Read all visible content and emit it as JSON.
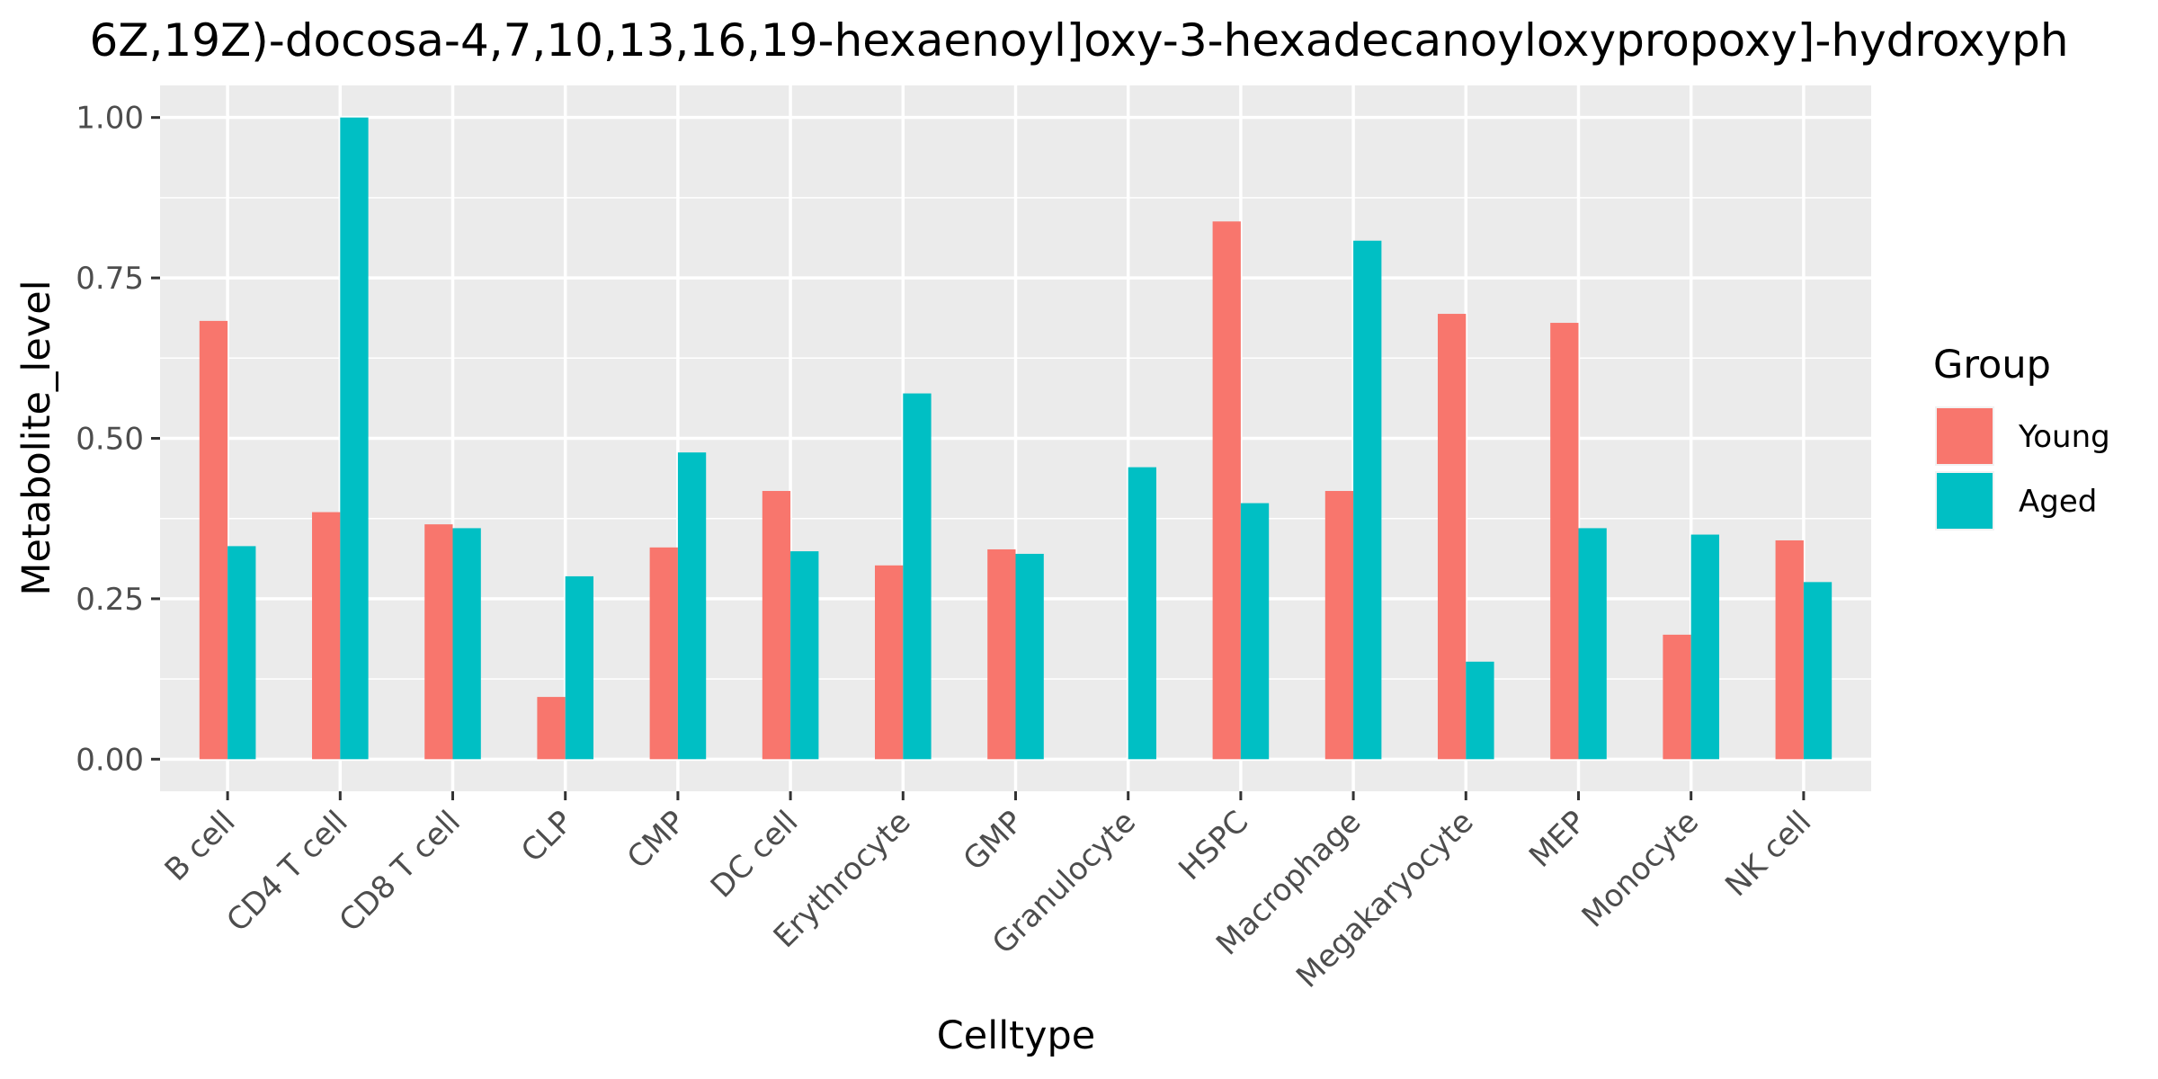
{
  "chart_data": {
    "type": "bar",
    "title": "6Z,19Z)-docosa-4,7,10,13,16,19-hexaenoyl]oxy-3-hexadecanoyloxypropoxy]-hydroxyph",
    "xlabel": "Celltype",
    "ylabel": "Metabolite_level",
    "ylim": [
      -0.05,
      1.05
    ],
    "yticks": [
      0,
      0.25,
      0.5,
      0.75,
      1.0
    ],
    "ytick_labels": [
      "0.00",
      "0.25",
      "0.50",
      "0.75",
      "1.00"
    ],
    "categories": [
      "B cell",
      "CD4 T cell",
      "CD8 T cell",
      "CLP",
      "CMP",
      "DC cell",
      "Erythrocyte",
      "GMP",
      "Granulocyte",
      "HSPC",
      "Macrophage",
      "Megakaryocyte",
      "MEP",
      "Monocyte",
      "NK cell"
    ],
    "series": [
      {
        "name": "Young",
        "color": "#F8766D",
        "values": [
          0.683,
          0.385,
          0.366,
          0.097,
          0.33,
          0.418,
          0.302,
          0.327,
          0.0,
          0.838,
          0.418,
          0.694,
          0.68,
          0.194,
          0.341
        ]
      },
      {
        "name": "Aged",
        "color": "#00BFC4",
        "values": [
          0.332,
          1.0,
          0.36,
          0.285,
          0.478,
          0.324,
          0.57,
          0.32,
          0.455,
          0.399,
          0.808,
          0.152,
          0.36,
          0.35,
          0.276
        ]
      }
    ],
    "grid": true,
    "legend": {
      "title": "Group",
      "placement": "right"
    },
    "panel_color": "#EBEBEB",
    "grid_color": "#FFFFFF"
  }
}
